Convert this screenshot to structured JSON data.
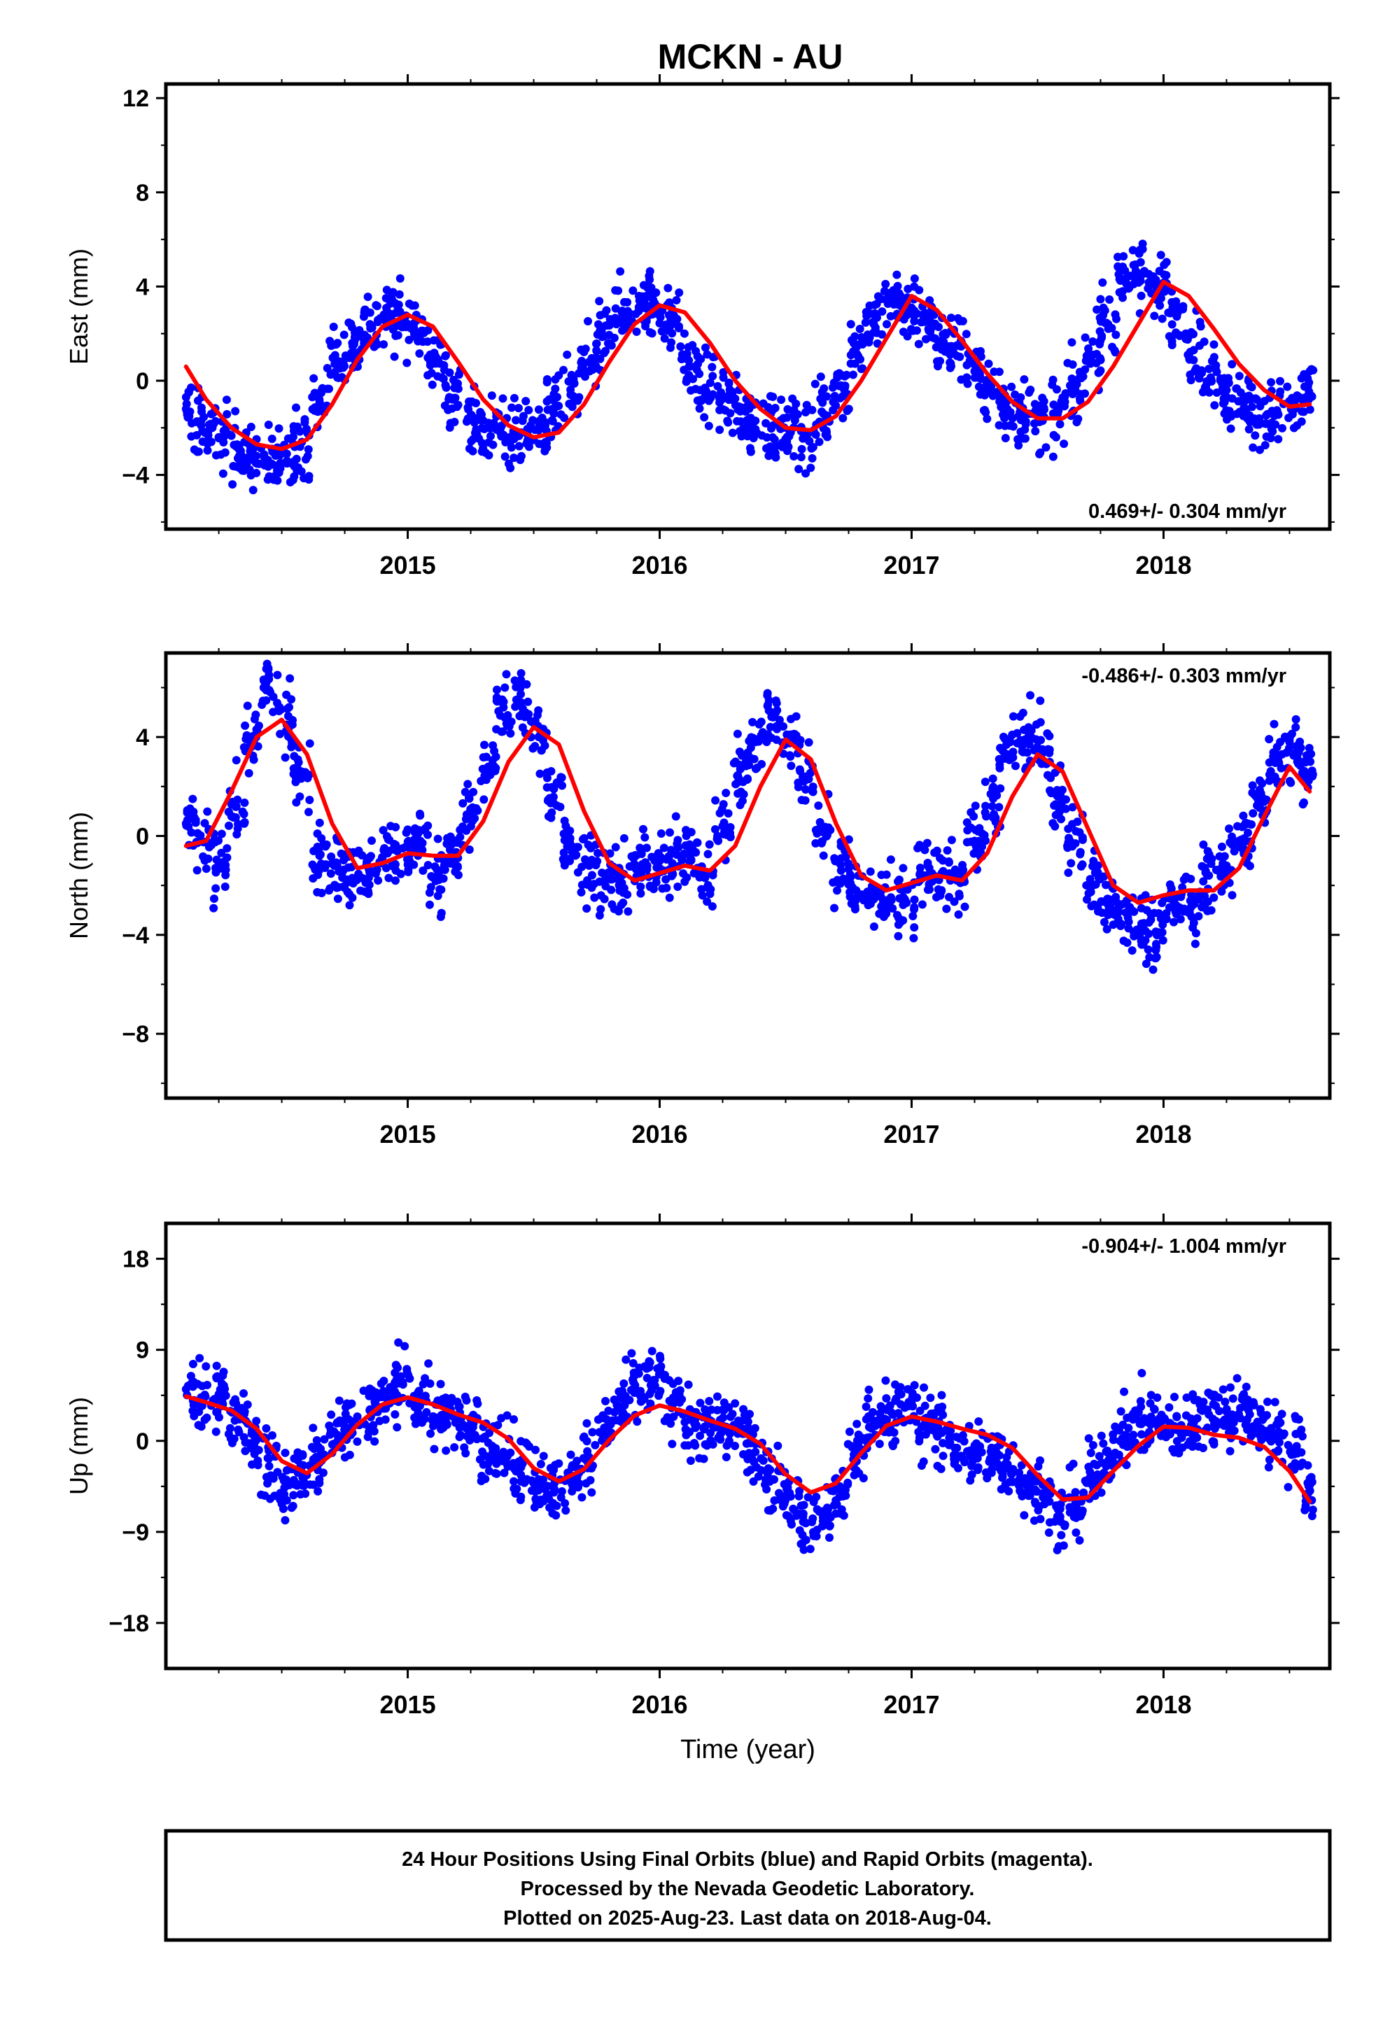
{
  "title": "MCKN - AU",
  "colors": {
    "points": "#0000ff",
    "fit": "#ff0000",
    "frame": "#000000"
  },
  "footer": {
    "lines": [
      "24 Hour Positions Using Final Orbits (blue) and Rapid Orbits (magenta).",
      "Processed by the Nevada Geodetic Laboratory.",
      "Plotted on 2025-Aug-23. Last data on 2018-Aug-04."
    ]
  },
  "chart_data": [
    {
      "type": "scatter",
      "ylabel": "East (mm)",
      "xlabel": "",
      "xlim": [
        2014.04,
        2018.66
      ],
      "ylim": [
        -6.3,
        12.6
      ],
      "yticks": [
        -4,
        0,
        4,
        8,
        12
      ],
      "ytick_labels": [
        "−4",
        "0",
        "4",
        "8",
        "12"
      ],
      "xticks": [
        2015,
        2016,
        2017,
        2018
      ],
      "xtick_labels": [
        "2015",
        "2016",
        "2017",
        "2018"
      ],
      "rate_label": "0.469+/- 0.304 mm/yr",
      "rate_position": "bottom-right",
      "series": [
        {
          "kind": "points",
          "x": [
            2014.12,
            2014.18,
            2014.25,
            2014.32,
            2014.38,
            2014.45,
            2014.52,
            2014.58,
            2014.65,
            2014.72,
            2014.78,
            2014.85,
            2014.92,
            2014.98,
            2015.05,
            2015.12,
            2015.18,
            2015.25,
            2015.32,
            2015.38,
            2015.45,
            2015.52,
            2015.58,
            2015.65,
            2015.72,
            2015.78,
            2015.85,
            2015.92,
            2015.98,
            2016.05,
            2016.12,
            2016.18,
            2016.25,
            2016.32,
            2016.38,
            2016.45,
            2016.52,
            2016.58,
            2016.65,
            2016.72,
            2016.78,
            2016.85,
            2016.92,
            2016.98,
            2017.05,
            2017.12,
            2017.18,
            2017.25,
            2017.32,
            2017.38,
            2017.45,
            2017.52,
            2017.58,
            2017.65,
            2017.72,
            2017.78,
            2017.85,
            2017.92,
            2017.98,
            2018.05,
            2018.12,
            2018.18,
            2018.25,
            2018.32,
            2018.38,
            2018.45,
            2018.52,
            2018.58
          ],
          "y": [
            -1.2,
            -1.9,
            -2.4,
            -2.8,
            -3.2,
            -3.5,
            -3.1,
            -2.6,
            -0.9,
            0.8,
            1.6,
            2.4,
            2.9,
            2.5,
            2.0,
            0.9,
            -0.8,
            -1.5,
            -2.0,
            -2.3,
            -2.2,
            -2.1,
            -1.4,
            -0.6,
            0.8,
            1.9,
            2.9,
            3.4,
            3.3,
            2.4,
            0.6,
            -0.3,
            -0.7,
            -1.3,
            -1.7,
            -1.9,
            -2.2,
            -2.3,
            -1.4,
            -0.2,
            1.4,
            2.4,
            3.5,
            3.3,
            2.5,
            1.7,
            1.5,
            0.4,
            -0.5,
            -1.2,
            -1.4,
            -1.7,
            -1.4,
            -0.4,
            1.1,
            2.4,
            4.3,
            4.6,
            3.9,
            3.2,
            1.3,
            0.5,
            -0.4,
            -0.9,
            -1.6,
            -1.4,
            -1.2,
            -0.6
          ]
        },
        {
          "kind": "line",
          "x": [
            2014.12,
            2014.2,
            2014.3,
            2014.4,
            2014.5,
            2014.6,
            2014.7,
            2014.8,
            2014.9,
            2015.0,
            2015.1,
            2015.2,
            2015.3,
            2015.4,
            2015.5,
            2015.6,
            2015.7,
            2015.8,
            2015.9,
            2016.0,
            2016.1,
            2016.2,
            2016.3,
            2016.4,
            2016.5,
            2016.6,
            2016.7,
            2016.8,
            2016.9,
            2017.0,
            2017.1,
            2017.2,
            2017.3,
            2017.4,
            2017.5,
            2017.6,
            2017.7,
            2017.8,
            2017.9,
            2018.0,
            2018.1,
            2018.2,
            2018.3,
            2018.4,
            2018.5,
            2018.58
          ],
          "y": [
            0.6,
            -0.8,
            -2.0,
            -2.7,
            -2.9,
            -2.5,
            -1.0,
            0.9,
            2.3,
            2.8,
            2.3,
            0.8,
            -0.8,
            -1.9,
            -2.4,
            -2.2,
            -1.0,
            0.8,
            2.4,
            3.2,
            2.9,
            1.6,
            0.0,
            -1.2,
            -2.0,
            -2.1,
            -1.5,
            0.0,
            1.8,
            3.6,
            3.0,
            1.7,
            0.3,
            -0.9,
            -1.6,
            -1.6,
            -0.9,
            0.6,
            2.4,
            4.2,
            3.6,
            2.2,
            0.7,
            -0.4,
            -1.1,
            -1.0
          ]
        }
      ]
    },
    {
      "type": "scatter",
      "ylabel": "North (mm)",
      "xlabel": "",
      "xlim": [
        2014.04,
        2018.66
      ],
      "ylim": [
        -10.6,
        7.4
      ],
      "yticks": [
        -8,
        -4,
        0,
        4
      ],
      "ytick_labels": [
        "−8",
        "−4",
        "0",
        "4"
      ],
      "xticks": [
        2015,
        2016,
        2017,
        2018
      ],
      "xtick_labels": [
        "2015",
        "2016",
        "2017",
        "2018"
      ],
      "rate_label": "-0.486+/- 0.303 mm/yr",
      "rate_position": "top-right",
      "series": [
        {
          "kind": "points",
          "x": [
            2014.12,
            2014.18,
            2014.25,
            2014.32,
            2014.38,
            2014.45,
            2014.52,
            2014.58,
            2014.65,
            2014.72,
            2014.78,
            2014.85,
            2014.92,
            2014.98,
            2015.05,
            2015.12,
            2015.18,
            2015.25,
            2015.32,
            2015.38,
            2015.45,
            2015.52,
            2015.58,
            2015.65,
            2015.72,
            2015.78,
            2015.85,
            2015.92,
            2015.98,
            2016.05,
            2016.12,
            2016.18,
            2016.25,
            2016.32,
            2016.38,
            2016.45,
            2016.52,
            2016.58,
            2016.65,
            2016.72,
            2016.78,
            2016.85,
            2016.92,
            2016.98,
            2017.05,
            2017.12,
            2017.18,
            2017.25,
            2017.32,
            2017.38,
            2017.45,
            2017.52,
            2017.58,
            2017.65,
            2017.72,
            2017.78,
            2017.85,
            2017.92,
            2017.98,
            2018.05,
            2018.12,
            2018.18,
            2018.25,
            2018.32,
            2018.38,
            2018.45,
            2018.52,
            2018.58
          ],
          "y": [
            0.5,
            -0.2,
            -1.2,
            1.2,
            3.8,
            5.9,
            4.5,
            2.6,
            -0.8,
            -1.2,
            -1.7,
            -1.5,
            -0.7,
            -0.5,
            -0.2,
            -1.6,
            -0.9,
            0.9,
            2.8,
            5.2,
            5.4,
            4.0,
            1.9,
            -0.4,
            -1.2,
            -1.8,
            -1.9,
            -1.4,
            -1.0,
            -1.1,
            -0.8,
            -1.7,
            0.4,
            2.7,
            3.8,
            4.8,
            4.1,
            2.4,
            0.2,
            -1.4,
            -2.2,
            -2.4,
            -2.6,
            -2.7,
            -1.6,
            -1.5,
            -1.8,
            -0.2,
            1.2,
            3.3,
            3.9,
            3.5,
            1.6,
            -0.3,
            -2.0,
            -2.7,
            -3.1,
            -3.6,
            -3.9,
            -2.8,
            -2.6,
            -1.6,
            -1.2,
            -0.1,
            1.6,
            3.2,
            3.3,
            2.4
          ]
        },
        {
          "kind": "line",
          "x": [
            2014.12,
            2014.2,
            2014.3,
            2014.4,
            2014.5,
            2014.6,
            2014.7,
            2014.8,
            2014.9,
            2015.0,
            2015.1,
            2015.2,
            2015.3,
            2015.4,
            2015.5,
            2015.6,
            2015.7,
            2015.8,
            2015.9,
            2016.0,
            2016.1,
            2016.2,
            2016.3,
            2016.4,
            2016.5,
            2016.6,
            2016.7,
            2016.8,
            2016.9,
            2017.0,
            2017.1,
            2017.2,
            2017.3,
            2017.4,
            2017.5,
            2017.6,
            2017.7,
            2017.8,
            2017.9,
            2018.0,
            2018.1,
            2018.2,
            2018.3,
            2018.4,
            2018.5,
            2018.58
          ],
          "y": [
            -0.4,
            -0.2,
            1.8,
            4.0,
            4.7,
            3.3,
            0.5,
            -1.3,
            -1.1,
            -0.7,
            -0.8,
            -0.8,
            0.6,
            3.0,
            4.4,
            3.7,
            1.0,
            -1.1,
            -1.8,
            -1.5,
            -1.2,
            -1.4,
            -0.4,
            2.0,
            3.9,
            3.1,
            0.5,
            -1.6,
            -2.2,
            -1.9,
            -1.6,
            -1.8,
            -0.7,
            1.6,
            3.3,
            2.6,
            0.3,
            -2.0,
            -2.7,
            -2.4,
            -2.2,
            -2.2,
            -1.3,
            0.8,
            2.8,
            1.8
          ]
        }
      ]
    },
    {
      "type": "scatter",
      "ylabel": "Up (mm)",
      "xlabel": "Time (year)",
      "xlim": [
        2014.04,
        2018.66
      ],
      "ylim": [
        -22.5,
        21.5
      ],
      "yticks": [
        -18,
        -9,
        0,
        9,
        18
      ],
      "ytick_labels": [
        "−18",
        "−9",
        "0",
        "9",
        "18"
      ],
      "xticks": [
        2015,
        2016,
        2017,
        2018
      ],
      "xtick_labels": [
        "2015",
        "2016",
        "2017",
        "2018"
      ],
      "rate_label": "-0.904+/- 1.004 mm/yr",
      "rate_position": "top-right",
      "series": [
        {
          "kind": "points",
          "x": [
            2014.12,
            2014.18,
            2014.25,
            2014.32,
            2014.38,
            2014.45,
            2014.52,
            2014.58,
            2014.65,
            2014.72,
            2014.78,
            2014.85,
            2014.92,
            2014.98,
            2015.05,
            2015.12,
            2015.18,
            2015.25,
            2015.32,
            2015.38,
            2015.45,
            2015.52,
            2015.58,
            2015.65,
            2015.72,
            2015.78,
            2015.85,
            2015.92,
            2015.98,
            2016.05,
            2016.12,
            2016.18,
            2016.25,
            2016.32,
            2016.38,
            2016.45,
            2016.52,
            2016.58,
            2016.65,
            2016.72,
            2016.78,
            2016.85,
            2016.92,
            2016.98,
            2017.05,
            2017.12,
            2017.18,
            2017.25,
            2017.32,
            2017.38,
            2017.45,
            2017.52,
            2017.58,
            2017.65,
            2017.72,
            2017.78,
            2017.85,
            2017.92,
            2017.98,
            2018.05,
            2018.12,
            2018.18,
            2018.25,
            2018.32,
            2018.38,
            2018.45,
            2018.52,
            2018.58
          ],
          "y": [
            5.1,
            4.3,
            4.6,
            2.8,
            -0.4,
            -2.5,
            -4.4,
            -3.1,
            -1.9,
            0.6,
            1.9,
            3.1,
            4.2,
            5.8,
            4.0,
            2.3,
            2.6,
            1.4,
            -0.2,
            -1.1,
            -2.6,
            -3.8,
            -5.1,
            -3.7,
            -1.6,
            1.3,
            3.1,
            4.7,
            6.0,
            3.5,
            2.1,
            1.4,
            1.5,
            1.2,
            -1.1,
            -3.8,
            -5.5,
            -8.1,
            -7.3,
            -5.4,
            -1.3,
            1.6,
            2.8,
            3.4,
            1.6,
            0.8,
            -0.7,
            -1.1,
            -1.6,
            -2.4,
            -3.7,
            -5.2,
            -7.6,
            -6.2,
            -3.7,
            -1.2,
            0.6,
            2.1,
            1.3,
            1.1,
            1.8,
            2.6,
            2.9,
            3.4,
            1.3,
            0.5,
            -0.8,
            -4.4
          ]
        },
        {
          "kind": "line",
          "x": [
            2014.12,
            2014.2,
            2014.3,
            2014.4,
            2014.5,
            2014.6,
            2014.7,
            2014.8,
            2014.9,
            2015.0,
            2015.1,
            2015.2,
            2015.3,
            2015.4,
            2015.5,
            2015.6,
            2015.7,
            2015.8,
            2015.9,
            2016.0,
            2016.1,
            2016.2,
            2016.3,
            2016.4,
            2016.5,
            2016.6,
            2016.7,
            2016.8,
            2016.9,
            2017.0,
            2017.1,
            2017.2,
            2017.3,
            2017.4,
            2017.5,
            2017.6,
            2017.7,
            2017.8,
            2017.9,
            2018.0,
            2018.1,
            2018.2,
            2018.3,
            2018.4,
            2018.5,
            2018.58
          ],
          "y": [
            4.4,
            3.8,
            3.0,
            1.2,
            -2.0,
            -3.2,
            -1.3,
            1.6,
            3.6,
            4.3,
            3.6,
            2.6,
            1.8,
            0.2,
            -2.7,
            -4.0,
            -2.8,
            0.1,
            2.5,
            3.5,
            2.9,
            2.0,
            1.2,
            -0.3,
            -3.3,
            -5.1,
            -4.2,
            -1.2,
            1.5,
            2.4,
            1.9,
            1.2,
            0.6,
            -0.7,
            -3.4,
            -5.8,
            -5.6,
            -3.0,
            -0.5,
            1.4,
            1.3,
            0.6,
            0.3,
            -0.6,
            -3.0,
            -6.0
          ]
        }
      ]
    }
  ]
}
